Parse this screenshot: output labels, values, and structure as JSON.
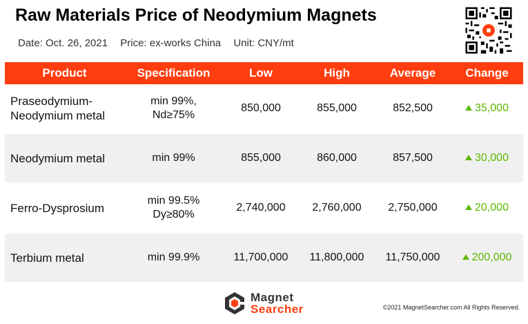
{
  "header": {
    "title": "Raw Materials Price of Neodymium Magnets",
    "date": "Date: Oct. 26, 2021",
    "price_basis": "Price: ex-works China",
    "unit": "Unit: CNY/mt"
  },
  "table": {
    "columns": [
      "Product",
      "Specification",
      "Low",
      "High",
      "Average",
      "Change"
    ],
    "rows": [
      {
        "product_line1": "Praseodymium-",
        "product_line2": "Neodymium metal",
        "spec_line1": "min 99%,",
        "spec_line2": "Nd≥75%",
        "low": "850,000",
        "high": "855,000",
        "average": "852,500",
        "change": "35,000",
        "direction": "up"
      },
      {
        "product_line1": "Neodymium metal",
        "product_line2": "",
        "spec_line1": "min 99%",
        "spec_line2": "",
        "low": "855,000",
        "high": "860,000",
        "average": "857,500",
        "change": "30,000",
        "direction": "up"
      },
      {
        "product_line1": "Ferro-Dysprosium",
        "product_line2": "",
        "spec_line1": "min 99.5%",
        "spec_line2": "Dy≥80%",
        "low": "2,740,000",
        "high": "2,760,000",
        "average": "2,750,000",
        "change": "20,000",
        "direction": "up"
      },
      {
        "product_line1": "Terbium metal",
        "product_line2": "",
        "spec_line1": "min 99.9%",
        "spec_line2": "",
        "low": "11,700,000",
        "high": "11,800,000",
        "average": "11,750,000",
        "change": "200,000",
        "direction": "up"
      }
    ]
  },
  "colors": {
    "header_bg": "#ff3d0f",
    "change_up": "#5cb800",
    "row_alt_bg": "#f0f0f0"
  },
  "footer": {
    "logo_line1": "Magnet",
    "logo_line2": "Searcher",
    "copyright": "©2021 MagnetSearcher.com All Rights Reserved."
  },
  "icons": {
    "qr": "qr-code-icon",
    "up": "triangle-up-icon",
    "logo": "magnet-searcher-logo-icon"
  }
}
